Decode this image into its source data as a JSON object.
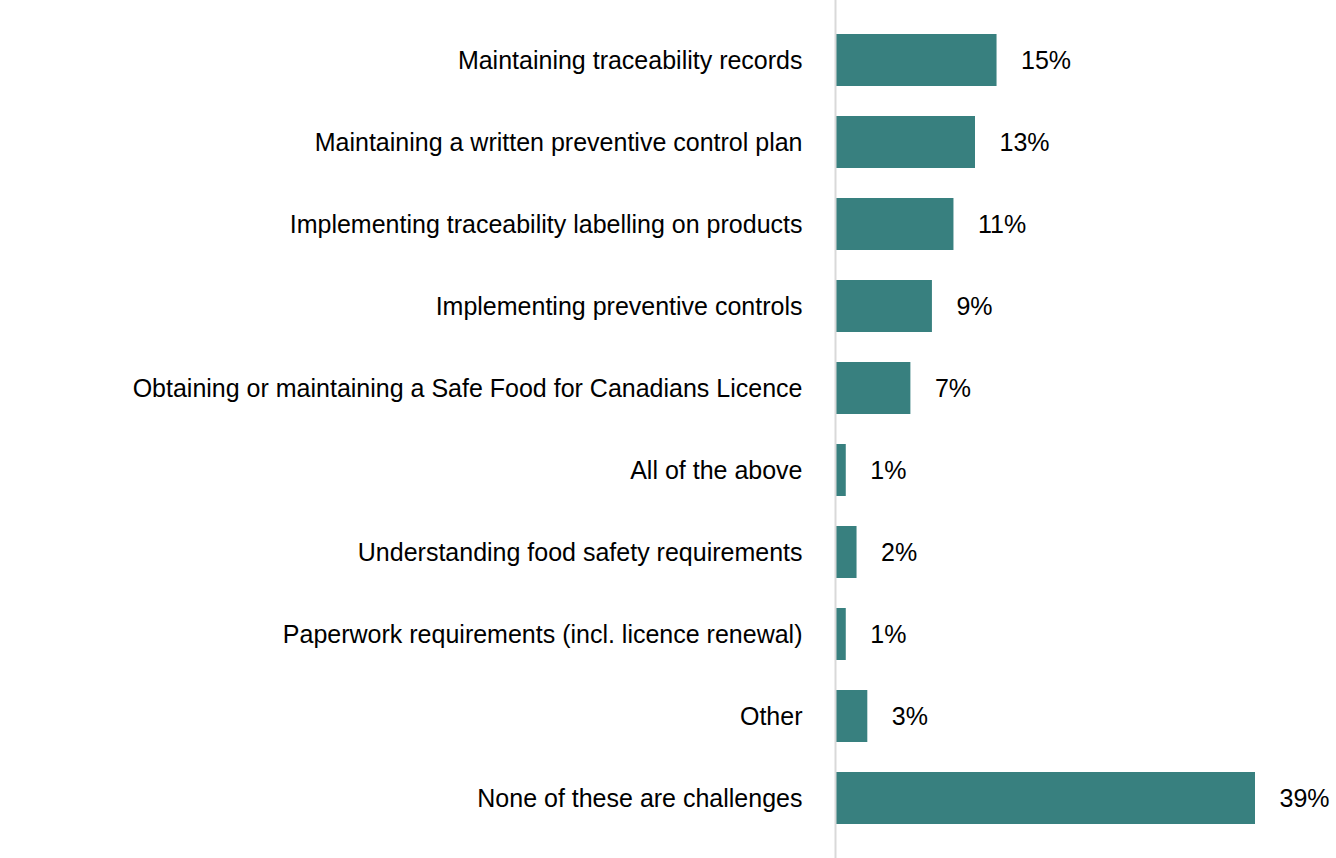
{
  "chart_data": {
    "type": "bar",
    "orientation": "horizontal",
    "categories": [
      "Maintaining traceability records",
      "Maintaining a written preventive control plan",
      "Implementing traceability labelling on products",
      "Implementing preventive controls",
      "Obtaining or maintaining a Safe Food for Canadians Licence",
      "All of the above",
      "Understanding food safety requirements",
      "Paperwork requirements (incl. licence renewal)",
      "Other",
      "None of these are challenges"
    ],
    "values": [
      15,
      13,
      11,
      9,
      7,
      1,
      2,
      1,
      3,
      39
    ],
    "value_labels": [
      "15%",
      "13%",
      "11%",
      "9%",
      "7%",
      "1%",
      "2%",
      "1%",
      "3%",
      "39%"
    ],
    "color": "#38807f",
    "data_labels": true,
    "tick_labels": "y",
    "grid": false
  }
}
